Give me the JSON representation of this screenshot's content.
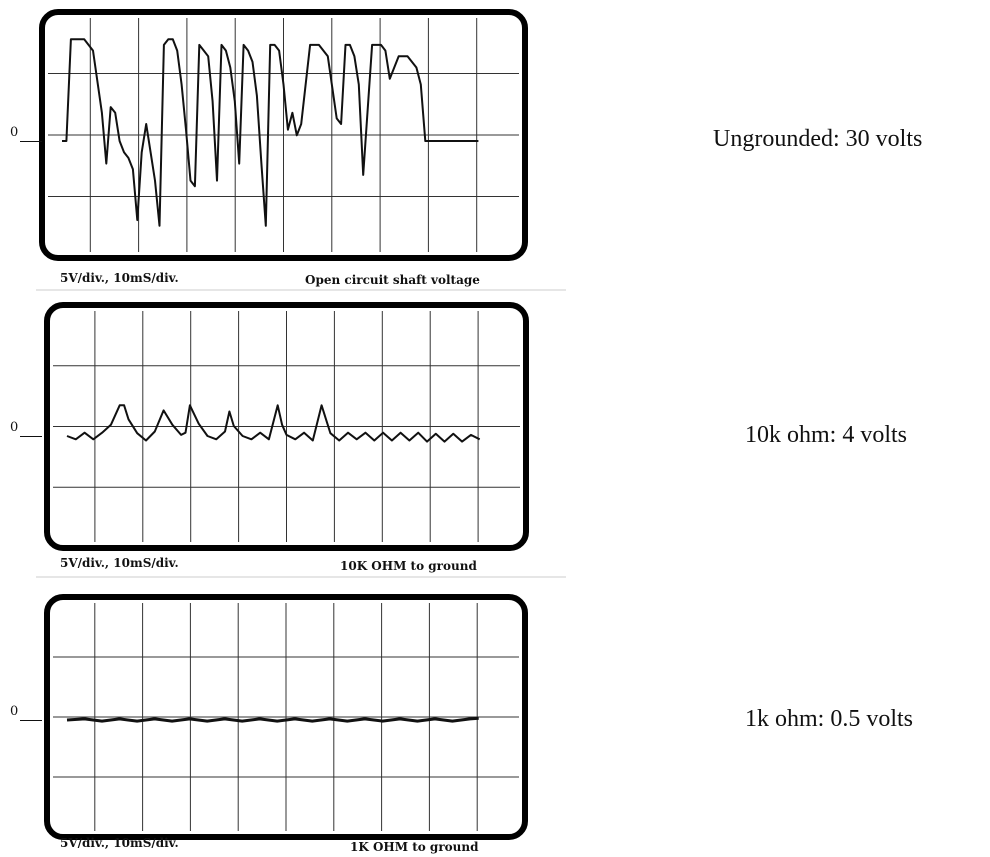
{
  "panels": [
    {
      "zero_label": "0",
      "caption_left": "5V/div., 10mS/div.",
      "caption_right": "Open circuit shaft voltage",
      "result_label": "Ungrounded: 30 volts"
    },
    {
      "zero_label": "0",
      "caption_left": "5V/div., 10mS/div.",
      "caption_right": "10K OHM to ground",
      "result_label": "10k ohm: 4 volts"
    },
    {
      "zero_label": "0",
      "caption_left": "5V/div., 10mS/div.",
      "caption_right": "1K OHM to ground",
      "result_label": "1k ohm: 0.5 volts"
    }
  ],
  "chart_data": [
    {
      "type": "line",
      "volts_per_div": 5,
      "ms_per_div": 10,
      "xlim": [
        0,
        100
      ],
      "ylim": [
        -20,
        20
      ],
      "grid": true,
      "series": [
        {
          "x": [
            0,
            1,
            2,
            5,
            7,
            9,
            10,
            11,
            12,
            13,
            14,
            15,
            16,
            17,
            18,
            19,
            20,
            21,
            22,
            23,
            24,
            25,
            26,
            27,
            28,
            29,
            30,
            31,
            32,
            33,
            34,
            35,
            36,
            37,
            38,
            39,
            40,
            41,
            42,
            43,
            44,
            45,
            46,
            47,
            48,
            49,
            50,
            51,
            52,
            53,
            54,
            56,
            58,
            60,
            62,
            63,
            64,
            65,
            66,
            67,
            68,
            70,
            72,
            73,
            74,
            76,
            78,
            80,
            81,
            82,
            83,
            84,
            86,
            88,
            89,
            90,
            91,
            92,
            93,
            94
          ],
          "y": [
            0,
            0,
            18,
            18,
            16,
            5,
            -4,
            6,
            5,
            0,
            -2,
            -3,
            -5,
            -14,
            -2,
            3,
            -2,
            -7,
            -15,
            17,
            18,
            18,
            16,
            10,
            2,
            -7,
            -8,
            17,
            16,
            15,
            7,
            -7,
            17,
            16,
            13,
            7,
            -4,
            17,
            16,
            14,
            8,
            -4,
            -15,
            17,
            17,
            16,
            10,
            2,
            5,
            1,
            3,
            17,
            17,
            15,
            4,
            3,
            17,
            17,
            15,
            10,
            -6,
            17,
            17,
            16,
            11,
            15,
            15,
            13,
            10,
            0,
            0,
            0,
            0,
            0,
            0,
            0,
            0,
            0,
            0,
            0
          ]
        }
      ]
    },
    {
      "type": "line",
      "volts_per_div": 5,
      "ms_per_div": 10,
      "xlim": [
        0,
        100
      ],
      "ylim": [
        -20,
        20
      ],
      "grid": true,
      "series": [
        {
          "x": [
            0,
            2,
            4,
            6,
            8,
            10,
            12,
            13,
            14,
            16,
            18,
            20,
            22,
            24,
            26,
            27,
            28,
            30,
            32,
            34,
            36,
            37,
            38,
            40,
            42,
            44,
            46,
            48,
            49,
            50,
            52,
            54,
            56,
            58,
            59,
            60,
            62,
            64,
            66,
            68,
            70,
            72,
            74,
            76,
            78,
            80,
            82,
            84,
            86,
            88,
            90,
            92,
            94
          ],
          "y": [
            0,
            -0.6,
            0.6,
            -0.6,
            0.6,
            2,
            5.5,
            5.5,
            3,
            0.5,
            -0.8,
            0.8,
            4.6,
            2,
            0.2,
            0.6,
            5.5,
            2.2,
            0,
            -0.6,
            0.8,
            4.4,
            1.8,
            0,
            -0.6,
            0.6,
            -0.6,
            5.5,
            2,
            0.2,
            -0.6,
            0.6,
            -0.8,
            5.5,
            3,
            0.5,
            -0.8,
            0.6,
            -0.6,
            0.6,
            -0.8,
            0.6,
            -0.8,
            0.6,
            -0.8,
            0.6,
            -1.0,
            0.4,
            -1.0,
            0.4,
            -1.0,
            0.2,
            -0.6
          ]
        }
      ]
    },
    {
      "type": "line",
      "volts_per_div": 5,
      "ms_per_div": 10,
      "xlim": [
        0,
        100
      ],
      "ylim": [
        -20,
        20
      ],
      "grid": true,
      "series": [
        {
          "x": [
            0,
            4,
            8,
            12,
            16,
            20,
            24,
            28,
            32,
            36,
            40,
            44,
            48,
            52,
            56,
            60,
            64,
            68,
            72,
            76,
            80,
            84,
            88,
            92,
            94
          ],
          "y": [
            0,
            0.2,
            -0.2,
            0.2,
            -0.2,
            0.2,
            -0.2,
            0.2,
            -0.2,
            0.2,
            -0.2,
            0.2,
            -0.2,
            0.2,
            -0.2,
            0.2,
            -0.2,
            0.2,
            -0.2,
            0.2,
            -0.2,
            0.2,
            -0.2,
            0.2,
            0.3
          ]
        }
      ]
    }
  ]
}
